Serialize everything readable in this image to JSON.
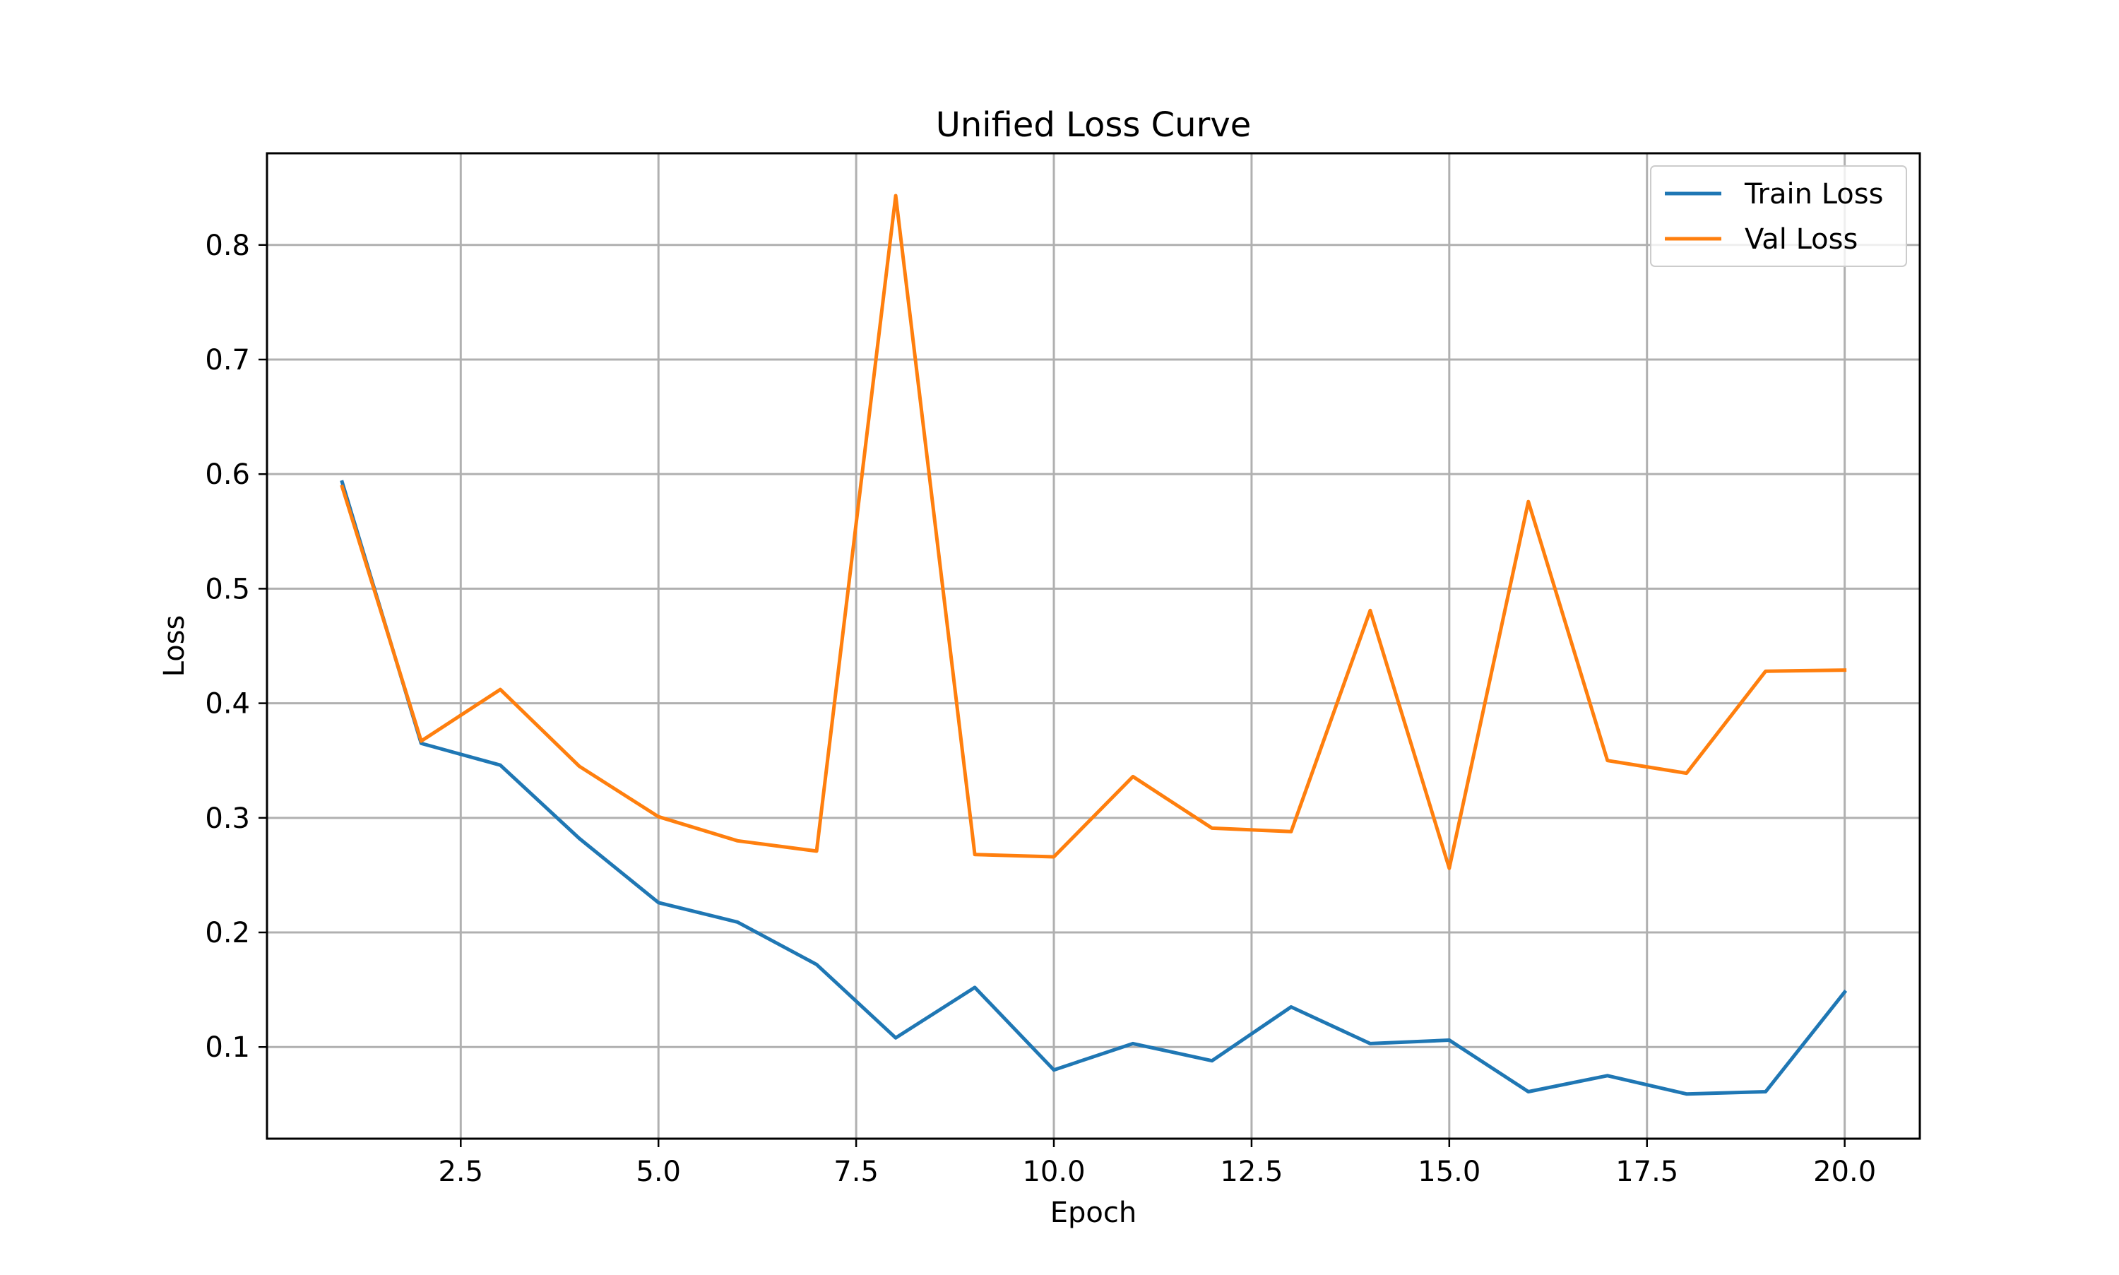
{
  "chart_data": {
    "type": "line",
    "title": "Unified Loss Curve",
    "xlabel": "Epoch",
    "ylabel": "Loss",
    "xlim": [
      0.05,
      20.95
    ],
    "ylim": [
      0.02,
      0.88
    ],
    "x_ticks": [
      2.5,
      5.0,
      7.5,
      10.0,
      12.5,
      15.0,
      17.5,
      20.0
    ],
    "x_tick_labels": [
      "2.5",
      "5.0",
      "7.5",
      "10.0",
      "12.5",
      "15.0",
      "17.5",
      "20.0"
    ],
    "y_ticks": [
      0.1,
      0.2,
      0.3,
      0.4,
      0.5,
      0.6,
      0.7,
      0.8
    ],
    "y_tick_labels": [
      "0.1",
      "0.2",
      "0.3",
      "0.4",
      "0.5",
      "0.6",
      "0.7",
      "0.8"
    ],
    "grid": true,
    "legend_position": "top-right",
    "x": [
      1,
      2,
      3,
      4,
      5,
      6,
      7,
      8,
      9,
      10,
      11,
      12,
      13,
      14,
      15,
      16,
      17,
      18,
      19,
      20
    ],
    "series": [
      {
        "name": "Train Loss",
        "color": "#1f77b4",
        "values": [
          0.593,
          0.365,
          0.346,
          0.282,
          0.226,
          0.209,
          0.172,
          0.108,
          0.152,
          0.08,
          0.103,
          0.088,
          0.135,
          0.103,
          0.106,
          0.061,
          0.075,
          0.059,
          0.061,
          0.148
        ]
      },
      {
        "name": "Val Loss",
        "color": "#ff7f0e",
        "values": [
          0.589,
          0.367,
          0.412,
          0.345,
          0.301,
          0.28,
          0.271,
          0.843,
          0.268,
          0.266,
          0.336,
          0.291,
          0.288,
          0.481,
          0.256,
          0.576,
          0.35,
          0.339,
          0.428,
          0.429
        ]
      }
    ]
  }
}
